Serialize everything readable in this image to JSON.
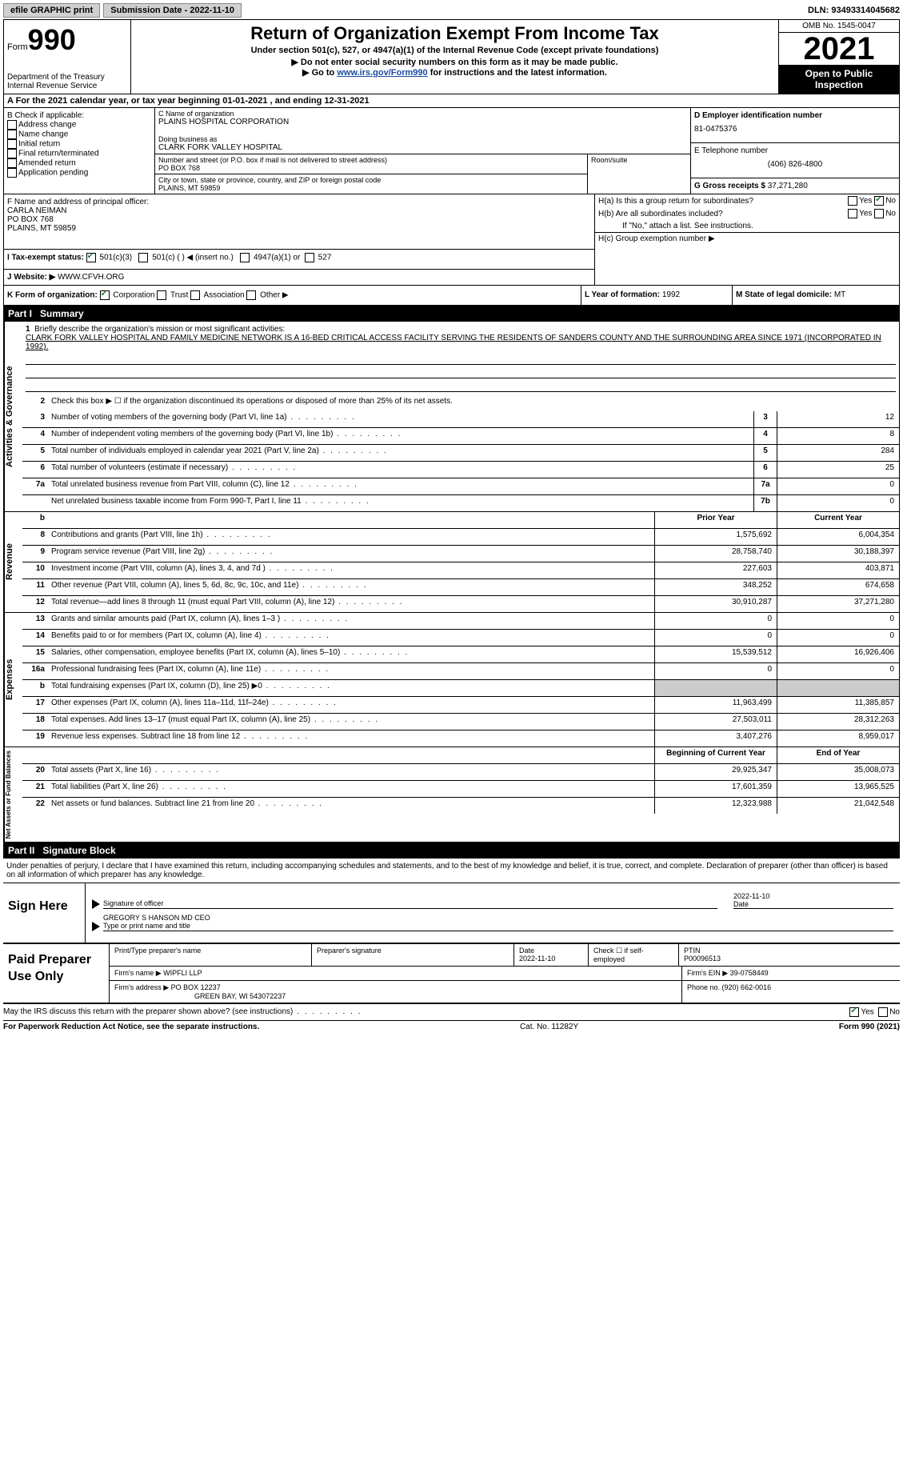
{
  "topbar": {
    "efile": "efile GRAPHIC print",
    "subdate_label": "Submission Date - ",
    "subdate": "2022-11-10",
    "dln_label": "DLN: ",
    "dln": "93493314045682"
  },
  "header": {
    "form_label": "Form",
    "form_num": "990",
    "dept": "Department of the Treasury\nInternal Revenue Service",
    "title": "Return of Organization Exempt From Income Tax",
    "sub1": "Under section 501(c), 527, or 4947(a)(1) of the Internal Revenue Code (except private foundations)",
    "sub2a": "▶ Do not enter social security numbers on this form as it may be made public.",
    "sub2b": "▶ Go to ",
    "sub2link": "www.irs.gov/Form990",
    "sub2c": " for instructions and the latest information.",
    "omb": "OMB No. 1545-0047",
    "year": "2021",
    "otpi": "Open to Public Inspection"
  },
  "rowA": {
    "text_a": "A For the 2021 calendar year, or tax year beginning ",
    "begin": "01-01-2021",
    "mid": "   , and ending ",
    "end": "12-31-2021"
  },
  "colB": {
    "label": "B Check if applicable:",
    "items": [
      "Address change",
      "Name change",
      "Initial return",
      "Final return/terminated",
      "Amended return",
      "Application pending"
    ]
  },
  "colC": {
    "name_label": "C Name of organization",
    "name": "PLAINS HOSPITAL CORPORATION",
    "dba_label": "Doing business as",
    "dba": "CLARK FORK VALLEY HOSPITAL",
    "street_label": "Number and street (or P.O. box if mail is not delivered to street address)",
    "street": "PO BOX 768",
    "room_label": "Room/suite",
    "city_label": "City or town, state or province, country, and ZIP or foreign postal code",
    "city": "PLAINS, MT  59859"
  },
  "colD": {
    "ein_label": "D Employer identification number",
    "ein": "81-0475376",
    "tel_label": "E Telephone number",
    "tel": "(406) 826-4800",
    "gross_label": "G Gross receipts $ ",
    "gross": "37,271,280"
  },
  "rowF": {
    "label": "F  Name and address of principal officer:",
    "name": "CARLA NEIMAN",
    "street": "PO BOX 768",
    "city": "PLAINS, MT  59859"
  },
  "rowH": {
    "a": "H(a)  Is this a group return for subordinates?",
    "b": "H(b)  Are all subordinates included?",
    "b2": "If \"No,\" attach a list. See instructions.",
    "c": "H(c)  Group exemption number ▶",
    "yes": "Yes",
    "no": "No"
  },
  "rowI": {
    "label": "I   Tax-exempt status:",
    "opt1": "501(c)(3)",
    "opt2": "501(c) (  ) ◀ (insert no.)",
    "opt3": "4947(a)(1) or",
    "opt4": "527"
  },
  "rowJ": {
    "label": "J   Website: ▶ ",
    "val": "WWW.CFVH.ORG"
  },
  "rowK": {
    "label": "K Form of organization:",
    "opts": [
      "Corporation",
      "Trust",
      "Association",
      "Other ▶"
    ],
    "l_label": "L Year of formation: ",
    "l_val": "1992",
    "m_label": "M State of legal domicile: ",
    "m_val": "MT"
  },
  "part1": {
    "tag": "Part I",
    "name": "Summary"
  },
  "mission": {
    "n": "1",
    "label": "Briefly describe the organization's mission or most significant activities:",
    "text": "CLARK FORK VALLEY HOSPITAL AND FAMILY MEDICINE NETWORK IS A 16-BED CRITICAL ACCESS FACILITY SERVING THE RESIDENTS OF SANDERS COUNTY AND THE SURROUNDING AREA SINCE 1971 (INCORPORATED IN 1992)."
  },
  "line2": {
    "n": "2",
    "text": "Check this box ▶ ☐  if the organization discontinued its operations or disposed of more than 25% of its net assets."
  },
  "gov_lines": [
    {
      "n": "3",
      "desc": "Number of voting members of the governing body (Part VI, line 1a)",
      "box": "3",
      "val": "12"
    },
    {
      "n": "4",
      "desc": "Number of independent voting members of the governing body (Part VI, line 1b)",
      "box": "4",
      "val": "8"
    },
    {
      "n": "5",
      "desc": "Total number of individuals employed in calendar year 2021 (Part V, line 2a)",
      "box": "5",
      "val": "284"
    },
    {
      "n": "6",
      "desc": "Total number of volunteers (estimate if necessary)",
      "box": "6",
      "val": "25"
    },
    {
      "n": "7a",
      "desc": "Total unrelated business revenue from Part VIII, column (C), line 12",
      "box": "7a",
      "val": "0"
    },
    {
      "n": "",
      "desc": "Net unrelated business taxable income from Form 990-T, Part I, line 11",
      "box": "7b",
      "val": "0"
    }
  ],
  "rev_header": {
    "n": "b",
    "prior": "Prior Year",
    "curr": "Current Year"
  },
  "rev_lines": [
    {
      "n": "8",
      "desc": "Contributions and grants (Part VIII, line 1h)",
      "prior": "1,575,692",
      "curr": "6,004,354"
    },
    {
      "n": "9",
      "desc": "Program service revenue (Part VIII, line 2g)",
      "prior": "28,758,740",
      "curr": "30,188,397"
    },
    {
      "n": "10",
      "desc": "Investment income (Part VIII, column (A), lines 3, 4, and 7d )",
      "prior": "227,603",
      "curr": "403,871"
    },
    {
      "n": "11",
      "desc": "Other revenue (Part VIII, column (A), lines 5, 6d, 8c, 9c, 10c, and 11e)",
      "prior": "348,252",
      "curr": "674,658"
    },
    {
      "n": "12",
      "desc": "Total revenue—add lines 8 through 11 (must equal Part VIII, column (A), line 12)",
      "prior": "30,910,287",
      "curr": "37,271,280"
    }
  ],
  "exp_lines": [
    {
      "n": "13",
      "desc": "Grants and similar amounts paid (Part IX, column (A), lines 1–3 )",
      "prior": "0",
      "curr": "0"
    },
    {
      "n": "14",
      "desc": "Benefits paid to or for members (Part IX, column (A), line 4)",
      "prior": "0",
      "curr": "0"
    },
    {
      "n": "15",
      "desc": "Salaries, other compensation, employee benefits (Part IX, column (A), lines 5–10)",
      "prior": "15,539,512",
      "curr": "16,926,406"
    },
    {
      "n": "16a",
      "desc": "Professional fundraising fees (Part IX, column (A), line 11e)",
      "prior": "0",
      "curr": "0"
    },
    {
      "n": "b",
      "desc": "Total fundraising expenses (Part IX, column (D), line 25) ▶0",
      "prior": "",
      "curr": "",
      "grey": true
    },
    {
      "n": "17",
      "desc": "Other expenses (Part IX, column (A), lines 11a–11d, 11f–24e)",
      "prior": "11,963,499",
      "curr": "11,385,857"
    },
    {
      "n": "18",
      "desc": "Total expenses. Add lines 13–17 (must equal Part IX, column (A), line 25)",
      "prior": "27,503,011",
      "curr": "28,312,263"
    },
    {
      "n": "19",
      "desc": "Revenue less expenses. Subtract line 18 from line 12",
      "prior": "3,407,276",
      "curr": "8,959,017"
    }
  ],
  "na_header": {
    "prior": "Beginning of Current Year",
    "curr": "End of Year"
  },
  "na_lines": [
    {
      "n": "20",
      "desc": "Total assets (Part X, line 16)",
      "prior": "29,925,347",
      "curr": "35,008,073"
    },
    {
      "n": "21",
      "desc": "Total liabilities (Part X, line 26)",
      "prior": "17,601,359",
      "curr": "13,965,525"
    },
    {
      "n": "22",
      "desc": "Net assets or fund balances. Subtract line 21 from line 20",
      "prior": "12,323,988",
      "curr": "21,042,548"
    }
  ],
  "vtabs": {
    "gov": "Activities & Governance",
    "rev": "Revenue",
    "exp": "Expenses",
    "na": "Net Assets or Fund Balances"
  },
  "part2": {
    "tag": "Part II",
    "name": "Signature Block"
  },
  "sig_intro": "Under penalties of perjury, I declare that I have examined this return, including accompanying schedules and statements, and to the best of my knowledge and belief, it is true, correct, and complete. Declaration of preparer (other than officer) is based on all information of which preparer has any knowledge.",
  "sign": {
    "label": "Sign Here",
    "sig_label": "Signature of officer",
    "date": "2022-11-10",
    "date_label": "Date",
    "name": "GREGORY S HANSON MD  CEO",
    "name_label": "Type or print name and title"
  },
  "prep": {
    "label": "Paid Preparer Use Only",
    "r1": {
      "a": "Print/Type preparer's name",
      "b": "Preparer's signature",
      "c_label": "Date",
      "c": "2022-11-10",
      "d_label": "Check ☐ if self-employed",
      "e_label": "PTIN",
      "e": "P00096513"
    },
    "r2": {
      "a_label": "Firm's name     ▶ ",
      "a": "WIPFLI LLP",
      "b_label": "Firm's EIN ▶ ",
      "b": "39-0758449"
    },
    "r3": {
      "a_label": "Firm's address ▶ ",
      "a": "PO BOX 12237",
      "a2": "GREEN BAY, WI  543072237",
      "b_label": "Phone no. ",
      "b": "(920) 662-0016"
    }
  },
  "bottom": {
    "q": "May the IRS discuss this return with the preparer shown above? (see instructions)",
    "yes": "Yes",
    "no": "No"
  },
  "footer": {
    "l": "For Paperwork Reduction Act Notice, see the separate instructions.",
    "m": "Cat. No. 11282Y",
    "r": "Form 990 (2021)"
  },
  "colors": {
    "link": "#1a4ba0",
    "check": "#2a7a3a"
  }
}
